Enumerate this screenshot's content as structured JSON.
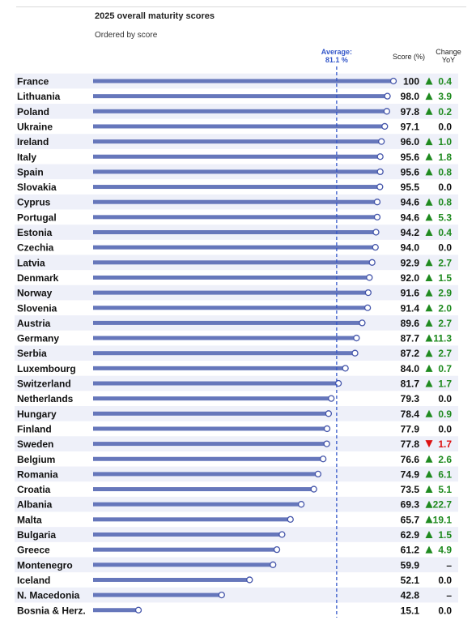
{
  "title": "2025 overall maturity scores",
  "subtitle": "Ordered by score",
  "headers": {
    "score": "Score (%)",
    "change_line1": "Change",
    "change_line2": "YoY"
  },
  "average": {
    "label_line1": "Average:",
    "label_line2": "81.1 %",
    "value": 81.1
  },
  "colors": {
    "bar": "#6677bb",
    "dot_stroke": "#4455aa",
    "stripe": "#eef0f9",
    "up": "#1f8a1f",
    "down": "#dd1111",
    "avg_line": "#3457c9"
  },
  "chart_data": {
    "type": "bar",
    "orientation": "horizontal",
    "title": "2025 overall maturity scores",
    "subtitle": "Ordered by score",
    "xlim": [
      0,
      100
    ],
    "categories": [
      "France",
      "Lithuania",
      "Poland",
      "Ukraine",
      "Ireland",
      "Italy",
      "Spain",
      "Slovakia",
      "Cyprus",
      "Portugal",
      "Estonia",
      "Czechia",
      "Latvia",
      "Denmark",
      "Norway",
      "Slovenia",
      "Austria",
      "Germany",
      "Serbia",
      "Luxembourg",
      "Switzerland",
      "Netherlands",
      "Hungary",
      "Finland",
      "Sweden",
      "Belgium",
      "Romania",
      "Croatia",
      "Albania",
      "Malta",
      "Bulgaria",
      "Greece",
      "Montenegro",
      "Iceland",
      "N. Macedonia",
      "Bosnia & Herz."
    ],
    "values": [
      100,
      98.0,
      97.8,
      97.1,
      96.0,
      95.6,
      95.6,
      95.5,
      94.6,
      94.6,
      94.2,
      94.0,
      92.9,
      92.0,
      91.6,
      91.4,
      89.6,
      87.7,
      87.2,
      84.0,
      81.7,
      79.3,
      78.4,
      77.9,
      77.8,
      76.6,
      74.9,
      73.5,
      69.3,
      65.7,
      62.9,
      61.2,
      59.9,
      52.1,
      42.8,
      15.1
    ],
    "score_labels": [
      "100",
      "98.0",
      "97.8",
      "97.1",
      "96.0",
      "95.6",
      "95.6",
      "95.5",
      "94.6",
      "94.6",
      "94.2",
      "94.0",
      "92.9",
      "92.0",
      "91.6",
      "91.4",
      "89.6",
      "87.7",
      "87.2",
      "84.0",
      "81.7",
      "79.3",
      "78.4",
      "77.9",
      "77.8",
      "76.6",
      "74.9",
      "73.5",
      "69.3",
      "65.7",
      "62.9",
      "61.2",
      "59.9",
      "52.1",
      "42.8",
      "15.1"
    ],
    "change_yoy": [
      "0.4",
      "3.9",
      "0.2",
      "0.0",
      "1.0",
      "1.8",
      "0.8",
      "0.0",
      "0.8",
      "5.3",
      "0.4",
      "0.0",
      "2.7",
      "1.5",
      "2.9",
      "2.0",
      "2.7",
      "11.3",
      "2.7",
      "0.7",
      "1.7",
      "0.0",
      "0.9",
      "0.0",
      "1.7",
      "2.6",
      "6.1",
      "5.1",
      "22.7",
      "19.1",
      "1.5",
      "4.9",
      "–",
      "0.0",
      "–",
      "0.0"
    ],
    "change_direction": [
      "up",
      "up",
      "up",
      "none",
      "up",
      "up",
      "up",
      "none",
      "up",
      "up",
      "up",
      "none",
      "up",
      "up",
      "up",
      "up",
      "up",
      "up",
      "up",
      "up",
      "up",
      "none",
      "up",
      "none",
      "down",
      "up",
      "up",
      "up",
      "up",
      "up",
      "up",
      "up",
      "none",
      "none",
      "none",
      "none"
    ],
    "average": 81.1
  }
}
